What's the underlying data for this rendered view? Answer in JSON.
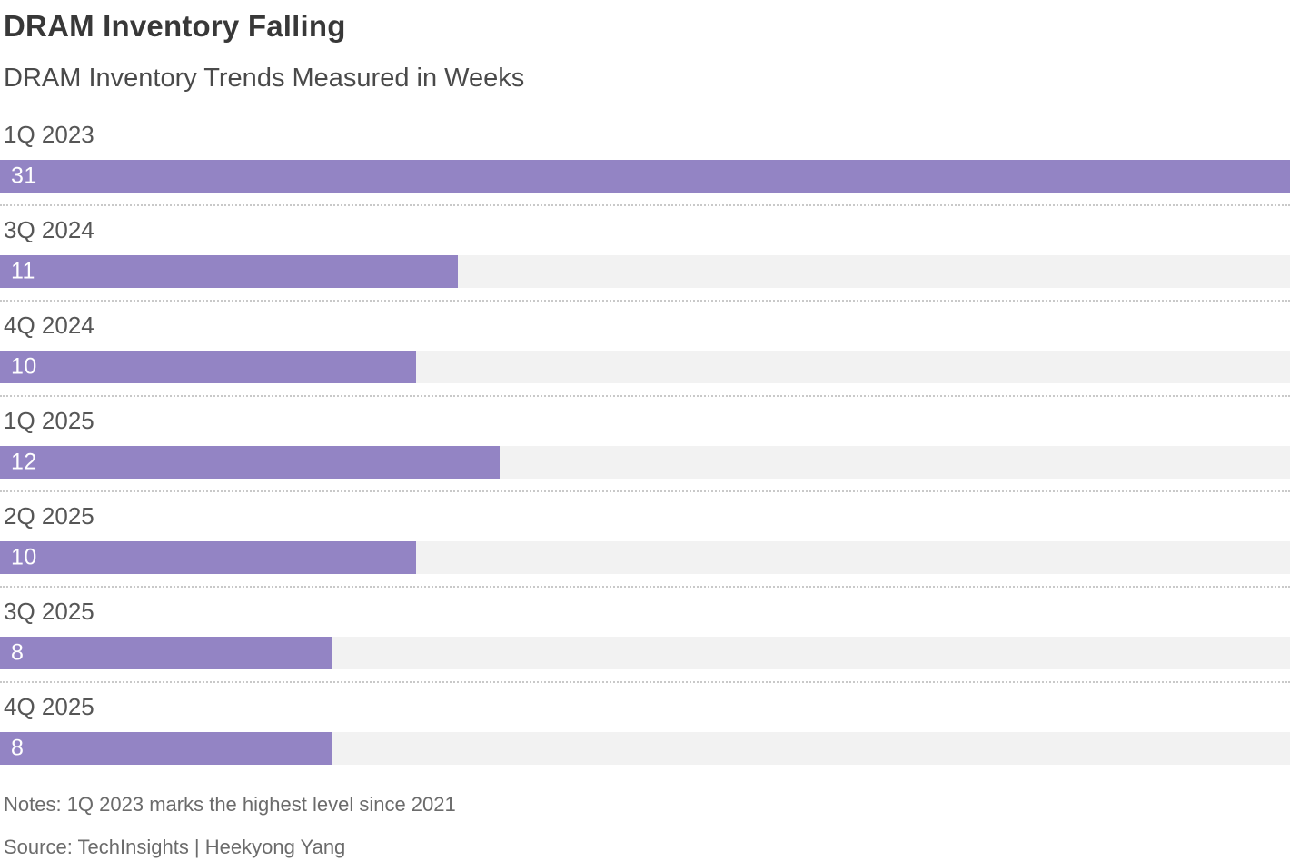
{
  "header": {
    "title": "DRAM Inventory Falling",
    "subtitle": "DRAM Inventory Trends Measured in Weeks"
  },
  "chart_data": {
    "type": "bar",
    "orientation": "horizontal",
    "title": "DRAM Inventory Falling",
    "subtitle": "DRAM Inventory Trends Measured in Weeks",
    "unit": "weeks",
    "categories": [
      "1Q 2023",
      "3Q 2024",
      "4Q 2024",
      "1Q 2025",
      "2Q 2025",
      "3Q 2025",
      "4Q 2025"
    ],
    "values": [
      31,
      11,
      10,
      12,
      10,
      8,
      8
    ],
    "xlim": [
      0,
      31
    ],
    "value_labels": "inside-left",
    "grid": false,
    "legend": false,
    "bar_color": "#9384c4",
    "track_color": "#f2f2f2",
    "separator_style": "dotted"
  },
  "footer": {
    "notes": "Notes: 1Q 2023 marks the highest level since 2021",
    "source": "Source: TechInsights | Heekyong Yang"
  }
}
